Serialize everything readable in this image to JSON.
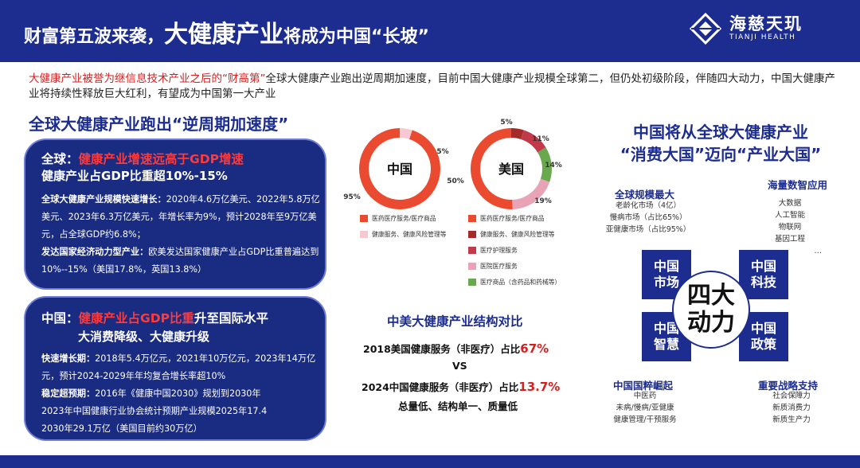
{
  "header": {
    "title_part1": "财富第五波来袭，",
    "title_part2": "大健康产业",
    "title_part3": "将成为中国“长坡”",
    "logo_cn": "海慈天玑",
    "logo_en": "TIANJI HEALTH"
  },
  "intro": {
    "highlight": "大健康产业被誉为继信息技术产业之后的“财高第”",
    "rest": "全球大健康产业跑出逆周期加速度，目前中国大健康产业规模全球第二，但仍处初级阶段，伴随四大动力，中国大健康产业将持续性释放巨大红利，有望成为中国第一大产业"
  },
  "section_title": "全球大健康产业跑出“逆周期加速度”",
  "card_global": {
    "label": "全球：",
    "highlight": "健康产业增速远高于GDP增速",
    "subtitle": "健康产业占GDP比重超10%-15%",
    "p1_bold": "全球大健康产业规模快速增长：",
    "p1_text": "2020年4.6万亿美元、2022年5.8万亿美元、2023年6.3万亿美元，年增长率为9%，预计2028年至9万亿美元，占全球GDP约6.8%；",
    "p2_bold": "发达国家经济动力型产业：",
    "p2_text": "欧美发达国家健康产业占GDP比重普遍达到10%--15%（美国17.8%，英国13.8%）"
  },
  "card_china": {
    "label": "中国：",
    "highlight": "健康产业占GDP比重",
    "label_rest": "升至国际水平",
    "subtitle": "大消费降级、大健康升级",
    "p1_bold": "快速增长期：",
    "p1_text": "2018年5.4万亿元，2021年10万亿元，2023年14万亿元，预计2024-2029年年均复合增长率超10%",
    "p2_bold": "稳定超预期：",
    "p2_text": "2016年《健康中国2030》规划到2030年",
    "p3_text": "2023年中国健康行业协会统计预期产业规模2025年17.4",
    "p4_text": "2030年29.1万亿（美国目前约30万亿）"
  },
  "chart_data": [
    {
      "type": "pie",
      "title": "中国",
      "series": [
        {
          "name": "医药医疗服务/医疗商品",
          "value": 95,
          "label": "95%",
          "color": "#ea4a2f"
        },
        {
          "name": "健康服务、健康风险管理等",
          "value": 5,
          "label": "5%",
          "color": "#f6c9d2"
        }
      ]
    },
    {
      "type": "pie",
      "title": "美国",
      "series": [
        {
          "name": "医药医疗服务/医疗商品",
          "value": 50,
          "label": "50%",
          "color": "#ea4a2f"
        },
        {
          "name": "健康服务、健康风险管理等",
          "value": 5,
          "label": "5%",
          "color": "#a52a2a"
        },
        {
          "name": "医疗护理服务",
          "value": 11,
          "label": "11%",
          "color": "#c23a4a"
        },
        {
          "name": "医院医疗服务",
          "value": 19,
          "label": "19%",
          "color": "#e8a4b6"
        },
        {
          "name": "医疗商品（含药品和药械等）",
          "value": 14,
          "label": "14%",
          "color": "#6aa84f"
        }
      ]
    }
  ],
  "compare": {
    "title": "中美大健康产业结构对比",
    "us_text": "2018美国健康服务（非医疗）占比",
    "us_pct": "67%",
    "vs": "VS",
    "cn_text": "2024中国健康服务（非医疗）占比",
    "cn_pct": "13.7%",
    "summary": "总量低、结构单一、质量低"
  },
  "right": {
    "title_line1": "中国将从全球大健康产业",
    "title_line2": "“消费大国”迈向“产业大国”",
    "market": {
      "title": "全球规模最大",
      "items": [
        "老龄化市场（4亿）",
        "慢病市场（占比65%）",
        "亚健康市场（占比95%）"
      ]
    },
    "tech": {
      "title": "海量数智应用",
      "items": [
        "大数据",
        "人工智能",
        "物联网",
        "基因工程",
        "…"
      ]
    },
    "wisdom": {
      "title": "中国国粹崛起",
      "items": [
        "中医药",
        "未病/慢病/亚健康",
        "健康管理/干预服务"
      ]
    },
    "policy": {
      "title": "重要战略支持",
      "items": [
        "社会保障力",
        "新质消费力",
        "新质生产力"
      ]
    },
    "boxes": {
      "market": "中国\n市场",
      "tech": "中国\n科技",
      "wisdom": "中国\n智慧",
      "policy": "中国\n政策"
    },
    "center": "四大\n动力"
  }
}
